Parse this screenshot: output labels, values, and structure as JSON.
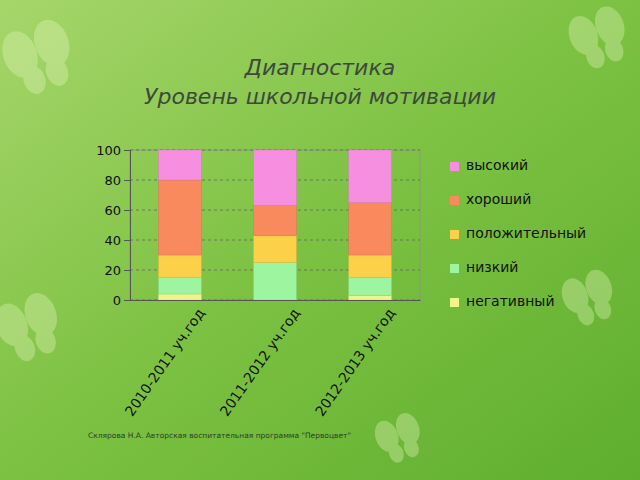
{
  "chart_data": {
    "type": "bar",
    "stacked": true,
    "title": "Диагностика",
    "subtitle": "Уровень школьной мотивации",
    "annotations": [
      "Склярова Н.А. Авторская воспитательная программа \"Первоцвет\""
    ],
    "categories": [
      "2010-2011   уч.год",
      "2011-2012   уч.год",
      "2012-2013   уч.год"
    ],
    "series": [
      {
        "name": "негативный",
        "color": "#eef58a",
        "values": [
          4,
          0,
          3
        ]
      },
      {
        "name": "низкий",
        "color": "#9ef5a0",
        "values": [
          11,
          25,
          12
        ]
      },
      {
        "name": "положительный",
        "color": "#fdd04a",
        "values": [
          15,
          18,
          15
        ]
      },
      {
        "name": "хороший",
        "color": "#f98a5e",
        "values": [
          50,
          20,
          35
        ]
      },
      {
        "name": "высокий",
        "color": "#f78fe0",
        "values": [
          20,
          37,
          35
        ]
      }
    ],
    "ylim": [
      0,
      100
    ],
    "yticks": [
      0,
      20,
      40,
      60,
      80,
      100
    ],
    "grid": true,
    "legend": "right"
  }
}
